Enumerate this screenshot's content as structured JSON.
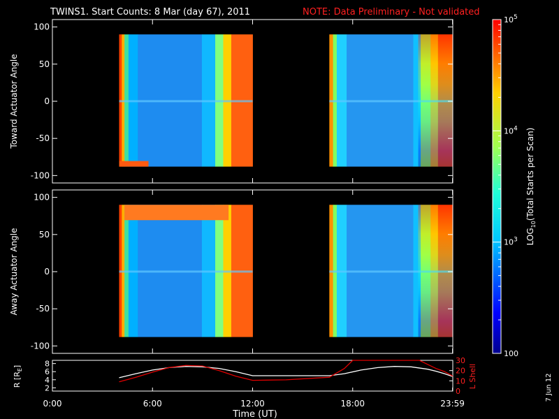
{
  "header": {
    "title": "TWINS1. Start Counts:  8 Mar (day  67), 2011",
    "note": "NOTE: Data Preliminary - Not validated"
  },
  "footer": {
    "date_stamp": "7 Jun 12",
    "xlabel": "Time (UT)"
  },
  "chart_data": [
    {
      "type": "heatmap",
      "name": "toward-panel",
      "ylabel": "Toward Actuator Angle",
      "ylim": [
        -110,
        110
      ],
      "yticks": [
        -100,
        -50,
        0,
        50,
        100
      ],
      "xlim_hours": [
        0,
        24
      ],
      "data_blocks_hours": [
        [
          4.0,
          12.0
        ],
        [
          16.6,
          24.0
        ]
      ],
      "angle_range": [
        -88,
        90
      ],
      "colormap": "rainbow (blue low → red high)"
    },
    {
      "type": "heatmap",
      "name": "away-panel",
      "ylabel": "Away Actuator Angle",
      "ylim": [
        -110,
        110
      ],
      "yticks": [
        -100,
        -50,
        0,
        50,
        100
      ],
      "xlim_hours": [
        0,
        24
      ],
      "data_blocks_hours": [
        [
          4.0,
          12.0
        ],
        [
          16.6,
          24.0
        ]
      ],
      "angle_range": [
        -88,
        90
      ],
      "colormap": "rainbow (blue low → red high)"
    },
    {
      "type": "line",
      "name": "orbit-panel",
      "ylabel_left": "R [R",
      "ylabel_left_sub": "E",
      "ylabel_left_end": "]",
      "ylabel_right": "L Shell",
      "ylim_left": [
        1.2,
        8.8
      ],
      "yticks_left": [
        2,
        4,
        6,
        8
      ],
      "ylim_right": [
        0,
        30
      ],
      "yticks_right": [
        0,
        10,
        20,
        30
      ],
      "xticks": [
        "0:00",
        "6:00",
        "12:00",
        "18:00",
        "23:59"
      ],
      "xticks_hours": [
        0,
        6,
        12,
        18,
        23.983
      ],
      "series": [
        {
          "name": "R",
          "color": "#ffffff",
          "x": [
            4.0,
            5.0,
            6.0,
            7.0,
            8.0,
            9.0,
            10.0,
            11.0,
            12.0,
            14.0,
            16.6,
            17.5,
            18.5,
            19.5,
            20.5,
            21.5,
            22.5,
            23.0,
            23.5,
            24.0
          ],
          "y": [
            4.5,
            5.5,
            6.4,
            7.0,
            7.3,
            7.2,
            6.8,
            6.0,
            5.0,
            5.0,
            5.0,
            5.5,
            6.4,
            7.0,
            7.3,
            7.2,
            6.6,
            6.1,
            5.5,
            4.8
          ]
        },
        {
          "name": "L Shell",
          "color": "#e00000",
          "x": [
            4.0,
            5.0,
            6.0,
            7.0,
            8.0,
            9.0,
            10.0,
            11.0,
            12.0,
            14.0,
            16.6,
            17.5,
            18.0,
            22.0,
            22.5,
            23.0,
            23.5,
            24.0
          ],
          "y": [
            9.0,
            13.5,
            18.5,
            23.0,
            25.0,
            24.5,
            20.0,
            14.5,
            10.5,
            11.0,
            13.5,
            22.0,
            30.0,
            30.0,
            26.0,
            22.0,
            19.0,
            14.5
          ]
        }
      ]
    },
    {
      "type": "heatmap",
      "name": "colorbar",
      "title": "LOG",
      "title_sub": "10",
      "title_end": "(Total Starts per Scan)",
      "range": [
        100,
        100000
      ],
      "scale": "log",
      "tick_labels": [
        {
          "value": 100000,
          "base": "10",
          "exp": "5"
        },
        {
          "value": 10000,
          "base": "10",
          "exp": "4"
        },
        {
          "value": 1000,
          "base": "10",
          "exp": "3"
        },
        {
          "value": 100,
          "base": "100",
          "exp": ""
        }
      ]
    }
  ]
}
